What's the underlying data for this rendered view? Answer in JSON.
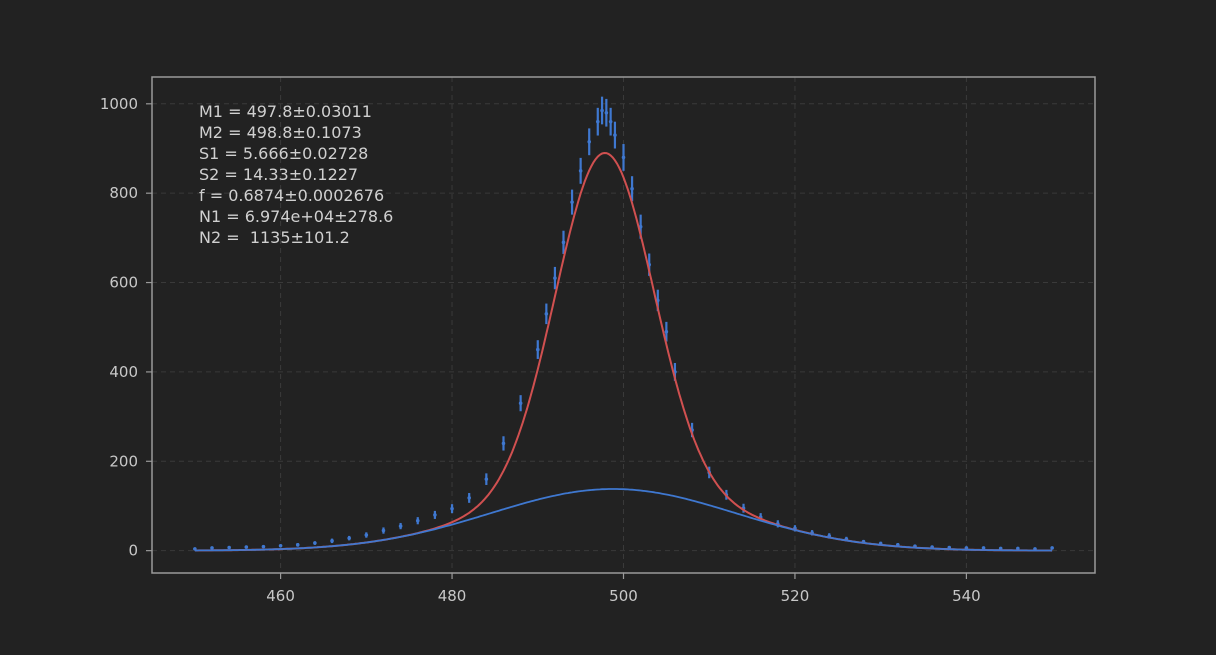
{
  "chart_data": {
    "type": "scatter",
    "title": "",
    "xlabel": "",
    "ylabel": "",
    "xlim": [
      445,
      555
    ],
    "ylim": [
      -50,
      1060
    ],
    "x_ticks": [
      460,
      480,
      500,
      520,
      540
    ],
    "y_ticks": [
      0,
      200,
      400,
      600,
      800,
      1000
    ],
    "grid": true,
    "annotations": [
      "M1 = 497.8±0.03011",
      "M2 = 498.8±0.1073",
      "S1 = 5.666±0.02728",
      "S2 = 14.33±0.1227",
      "f = 0.6874±0.0002676",
      "N1 = 6.974e+04±278.6",
      "N2 =  1135±101.2"
    ],
    "fit_parameters": {
      "M1": 497.8,
      "M2": 498.8,
      "S1": 5.666,
      "S2": 14.33,
      "f": 0.6874,
      "N1": 69740,
      "N2": 1135
    },
    "data_points": {
      "x": [
        450,
        452,
        454,
        456,
        458,
        460,
        462,
        464,
        466,
        468,
        470,
        472,
        474,
        476,
        478,
        480,
        482,
        484,
        486,
        488,
        490,
        491,
        492,
        493,
        494,
        495,
        496,
        497,
        497.5,
        498,
        498.5,
        499,
        500,
        501,
        502,
        503,
        504,
        505,
        506,
        508,
        510,
        512,
        514,
        516,
        518,
        520,
        522,
        524,
        526,
        528,
        530,
        532,
        534,
        536,
        538,
        540,
        542,
        544,
        546,
        548,
        550
      ],
      "y": [
        4,
        6,
        7,
        8,
        9,
        11,
        13,
        17,
        22,
        28,
        35,
        45,
        55,
        67,
        80,
        94,
        118,
        160,
        240,
        330,
        450,
        530,
        610,
        690,
        780,
        850,
        915,
        960,
        985,
        980,
        960,
        930,
        880,
        810,
        725,
        640,
        560,
        490,
        400,
        270,
        175,
        125,
        95,
        75,
        60,
        50,
        40,
        33,
        26,
        20,
        16,
        13,
        10,
        8,
        7,
        6,
        6,
        5,
        5,
        4,
        6
      ],
      "error": [
        2,
        2,
        3,
        3,
        3,
        3,
        4,
        4,
        5,
        5,
        6,
        7,
        7,
        8,
        9,
        10,
        11,
        13,
        16,
        18,
        21,
        23,
        25,
        26,
        28,
        29,
        30,
        31,
        31,
        31,
        31,
        30,
        30,
        28,
        27,
        25,
        24,
        22,
        20,
        16,
        13,
        11,
        10,
        9,
        8,
        7,
        6,
        6,
        5,
        4,
        4,
        4,
        3,
        3,
        3,
        2,
        2,
        2,
        2,
        2,
        2
      ]
    },
    "series": [
      {
        "type": "errorbar",
        "color": "#3f78d0"
      },
      {
        "type": "total_fit",
        "color": "#d05050"
      },
      {
        "type": "second_gaussian",
        "color": "#3f78d0"
      }
    ]
  }
}
